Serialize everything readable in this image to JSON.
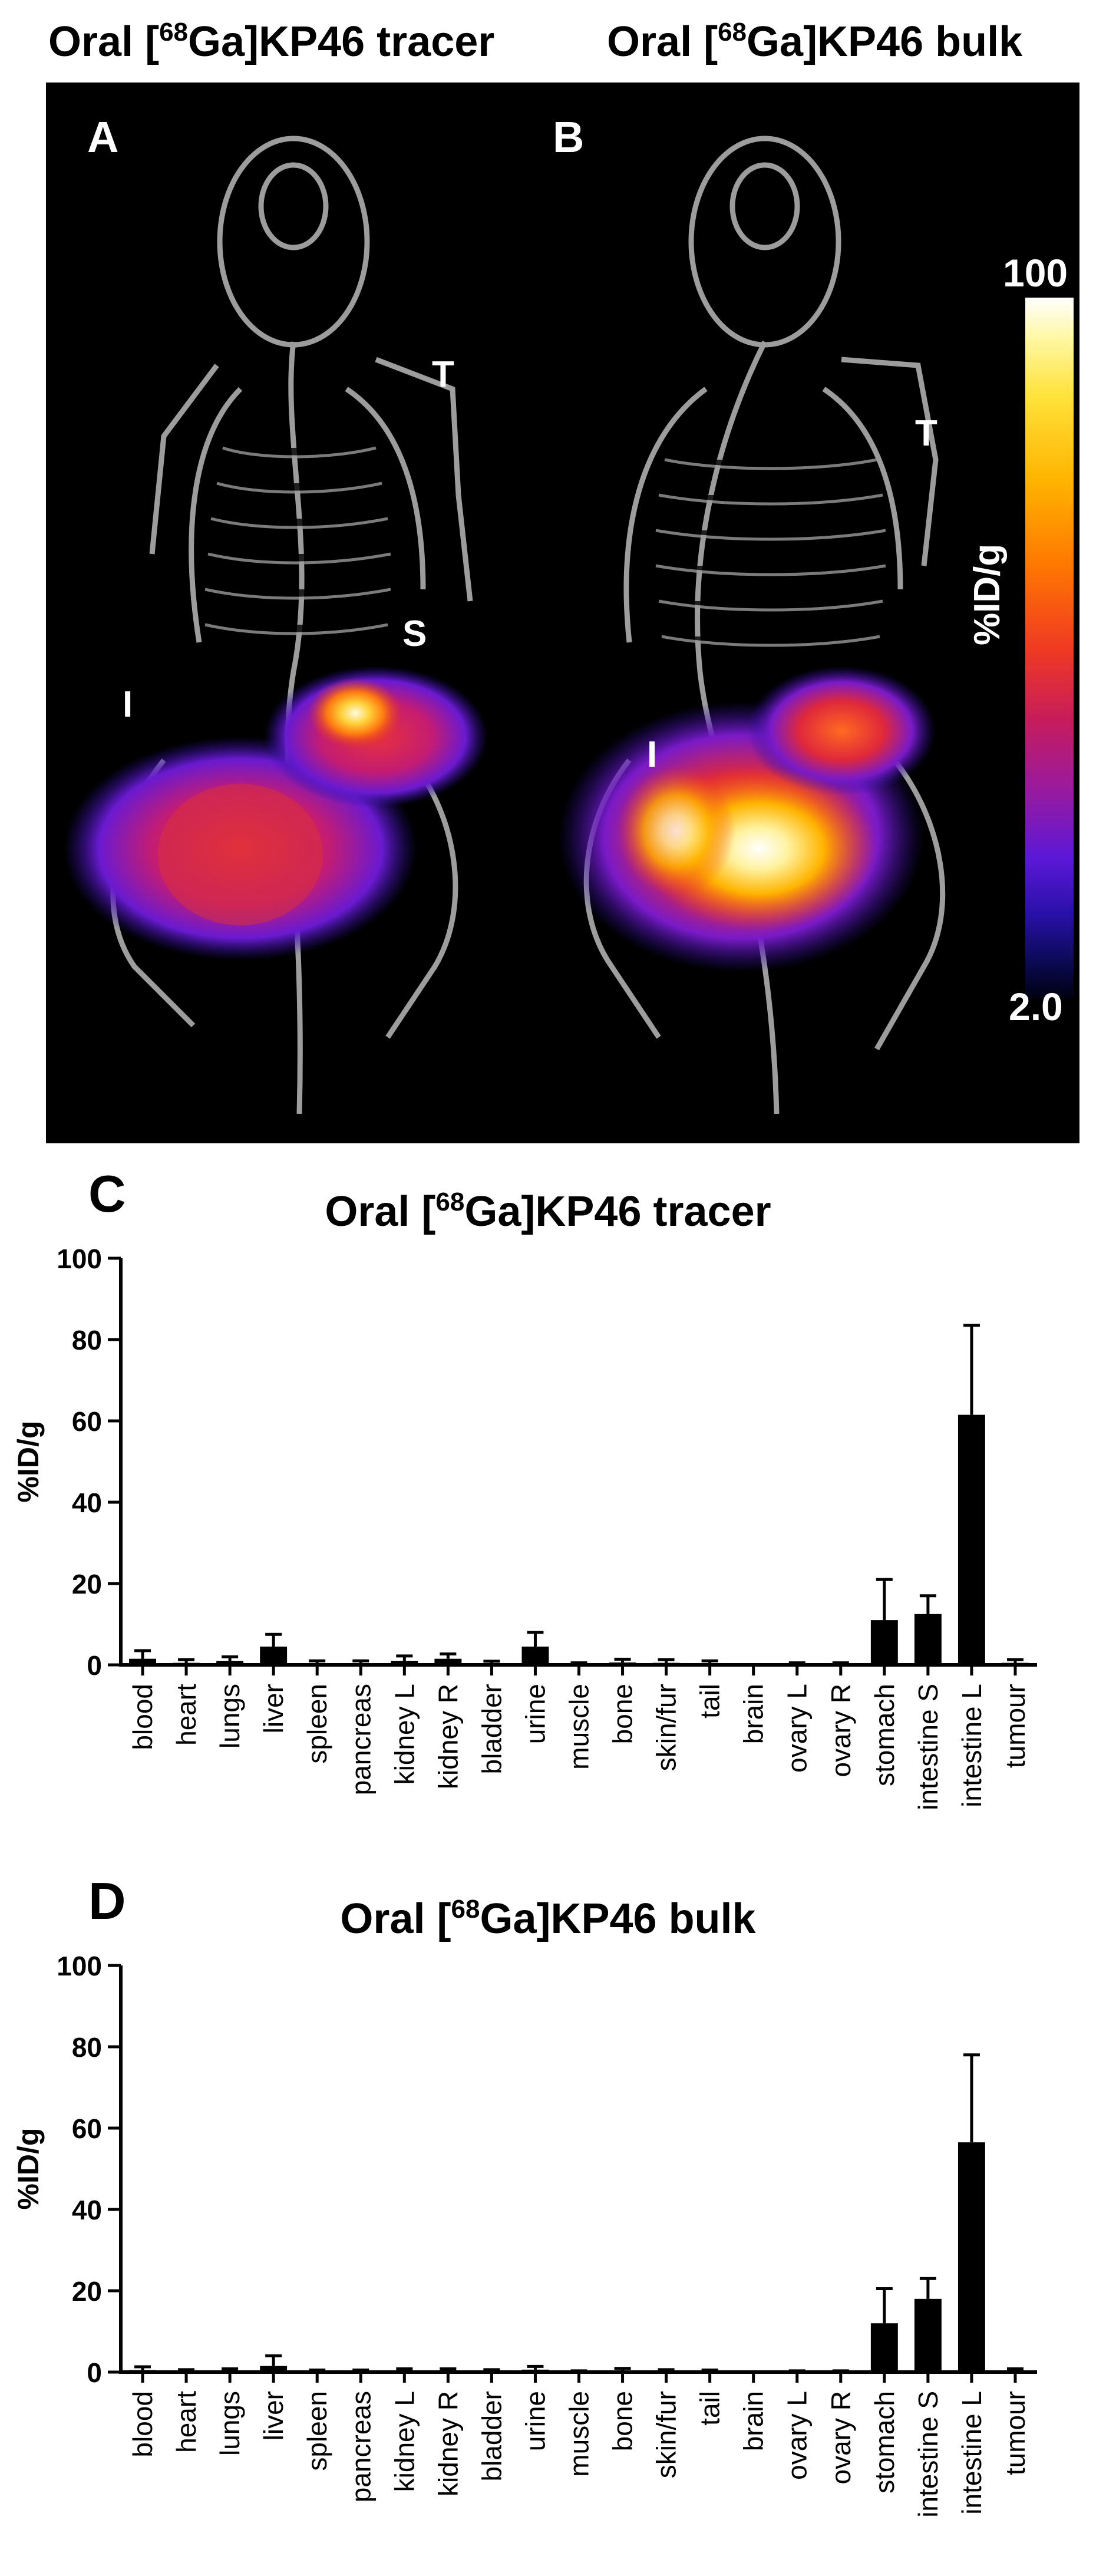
{
  "images": {
    "left_title_prefix": "Oral [",
    "left_title_sup": "68",
    "left_title_suffix": "Ga]KP46 tracer",
    "right_title_prefix": "Oral [",
    "right_title_sup": "68",
    "right_title_suffix": "Ga]KP46 bulk",
    "panel_a_label": "A",
    "panel_b_label": "B",
    "a_organs": {
      "tail": "T",
      "stomach": "S",
      "intestine": "I"
    },
    "b_organs": {
      "tail": "T",
      "intestine": "I"
    },
    "colorbar": {
      "max": "100",
      "min": "2.0",
      "unit": "%ID/g"
    }
  },
  "charts": {
    "c_letter": "C",
    "d_letter": "D",
    "title_prefix": "Oral [",
    "title_sup": "68"
  },
  "chart_data": [
    {
      "type": "bar",
      "panel": "C",
      "title": "Oral [68Ga]KP46 tracer",
      "title_suffix": "Ga]KP46 tracer",
      "ylabel": "%ID/g",
      "xlabel": "",
      "ylim": [
        0,
        100
      ],
      "yticks": [
        "0",
        "20",
        "40",
        "60",
        "80",
        "100"
      ],
      "categories": [
        "blood",
        "heart",
        "lungs",
        "liver",
        "spleen",
        "pancreas",
        "kidney L",
        "kidney R",
        "bladder",
        "urine",
        "muscle",
        "bone",
        "skin/fur",
        "tail",
        "brain",
        "ovary L",
        "ovary R",
        "stomach",
        "intestine S",
        "intestine L",
        "tumour"
      ],
      "values": [
        1.5,
        0.5,
        1.0,
        4.5,
        0.4,
        0.4,
        1.0,
        1.5,
        0.4,
        4.5,
        0.2,
        0.6,
        0.5,
        0.4,
        0.0,
        0.2,
        0.2,
        11.0,
        12.5,
        61.5,
        0.5
      ],
      "errors": [
        2.0,
        0.8,
        1.0,
        3.0,
        0.6,
        0.6,
        1.2,
        1.2,
        0.5,
        3.5,
        0.3,
        0.8,
        0.8,
        0.6,
        0.0,
        0.3,
        0.3,
        10.0,
        4.5,
        22.0,
        0.8
      ]
    },
    {
      "type": "bar",
      "panel": "D",
      "title": "Oral [68Ga]KP46 bulk",
      "title_suffix": "Ga]KP46 bulk",
      "ylabel": "%ID/g",
      "xlabel": "",
      "ylim": [
        0,
        100
      ],
      "yticks": [
        "0",
        "20",
        "40",
        "60",
        "80",
        "100"
      ],
      "categories": [
        "blood",
        "heart",
        "lungs",
        "liver",
        "spleen",
        "pancreas",
        "kidney L",
        "kidney R",
        "bladder",
        "urine",
        "muscle",
        "bone",
        "skin/fur",
        "tail",
        "brain",
        "ovary L",
        "ovary R",
        "stomach",
        "intestine S",
        "intestine L",
        "tumour"
      ],
      "values": [
        0.5,
        0.2,
        0.3,
        1.5,
        0.2,
        0.2,
        0.3,
        0.3,
        0.2,
        0.6,
        0.1,
        0.4,
        0.2,
        0.2,
        0.0,
        0.1,
        0.1,
        12.0,
        18.0,
        56.5,
        0.3
      ],
      "errors": [
        0.8,
        0.4,
        0.5,
        2.5,
        0.3,
        0.3,
        0.5,
        0.5,
        0.4,
        0.8,
        0.2,
        0.5,
        0.4,
        0.3,
        0.0,
        0.2,
        0.2,
        8.5,
        5.0,
        21.5,
        0.5
      ]
    }
  ]
}
